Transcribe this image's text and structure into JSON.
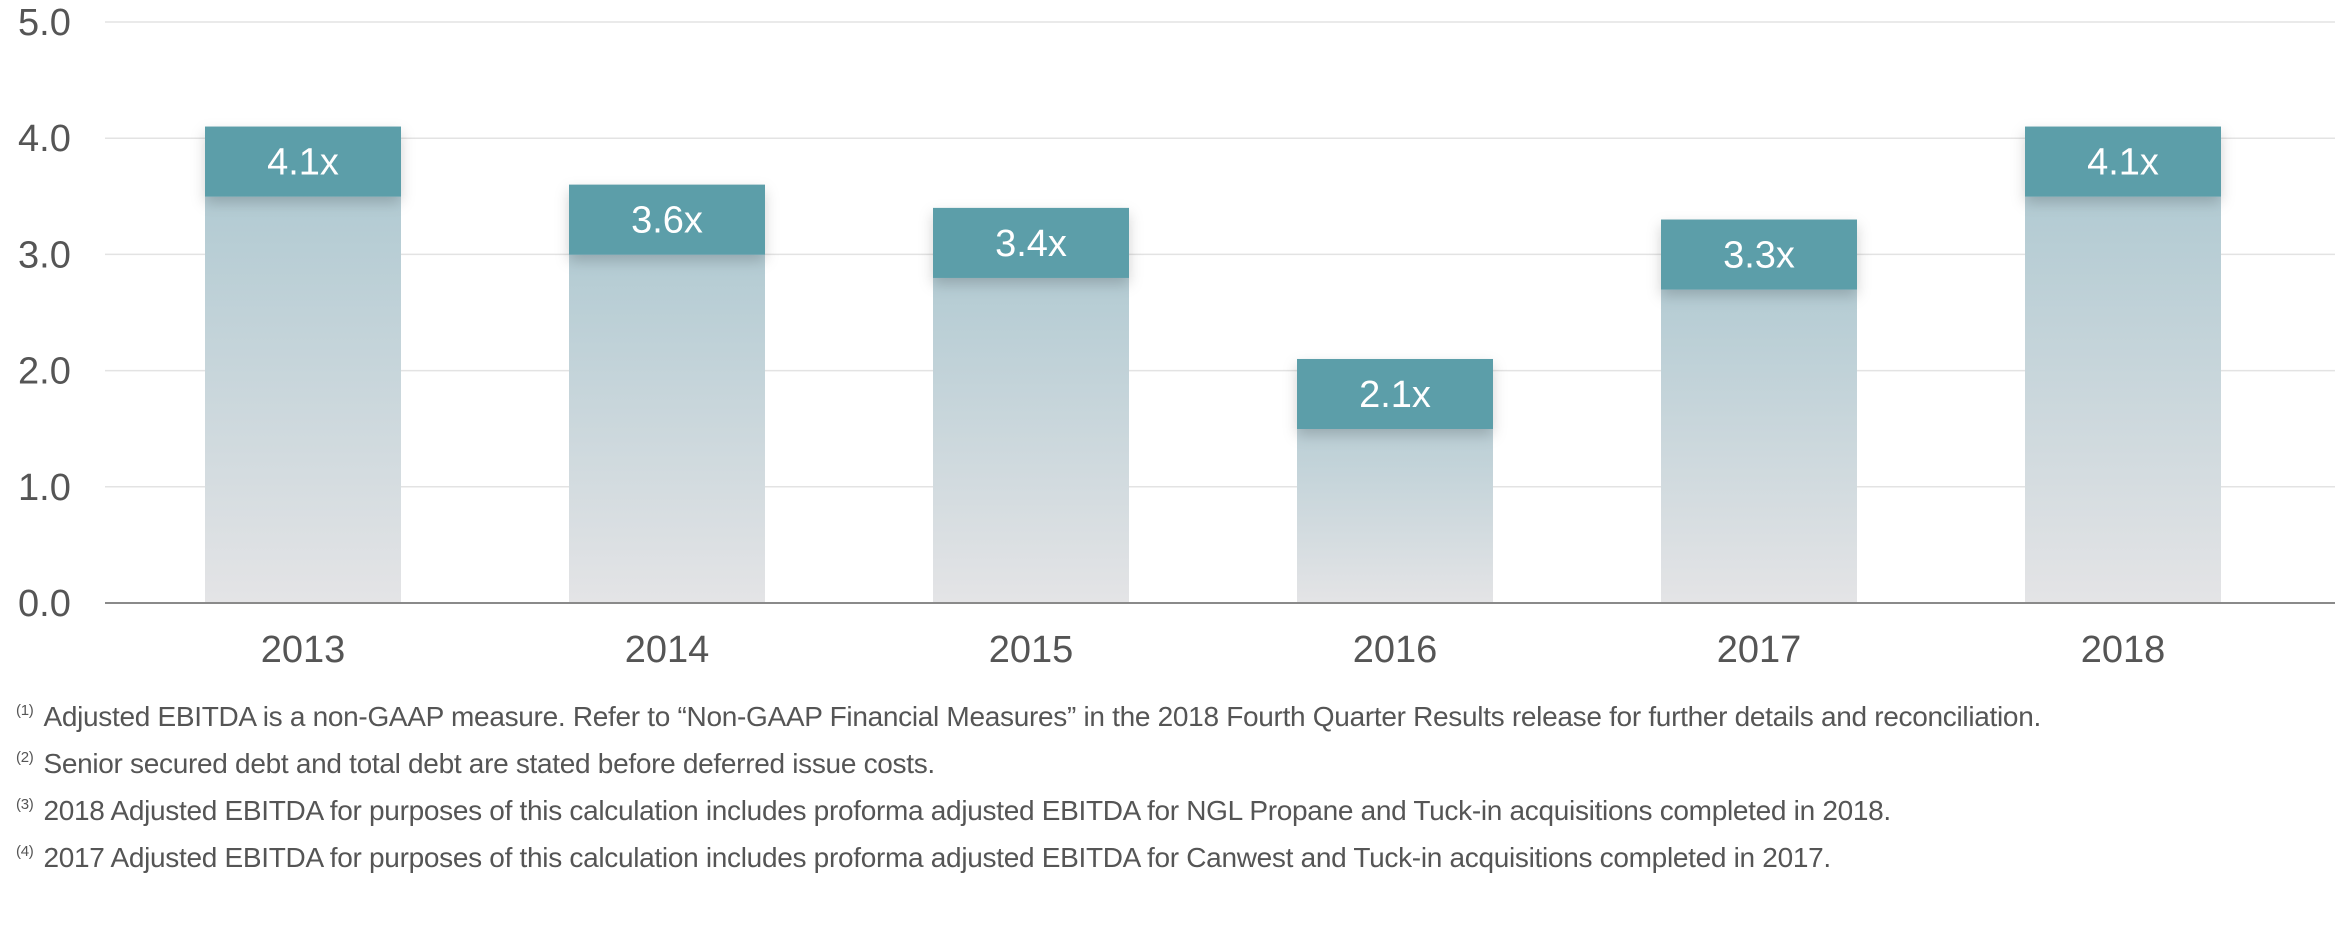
{
  "chart_data": {
    "type": "bar",
    "categories": [
      "2013",
      "2014",
      "2015",
      "2016",
      "2017",
      "2018"
    ],
    "values": [
      4.1,
      3.6,
      3.4,
      2.1,
      3.3,
      4.1
    ],
    "data_labels": [
      "4.1x",
      "3.6x",
      "3.4x",
      "2.1x",
      "3.3x",
      "4.1x"
    ],
    "y_ticks": [
      "0.0",
      "1.0",
      "2.0",
      "3.0",
      "4.0",
      "5.0"
    ],
    "ylim": [
      0,
      5
    ],
    "grid": true,
    "title": "",
    "xlabel": "",
    "ylabel": ""
  },
  "colors": {
    "label_box": "#5b9ea9",
    "bar_top": "#a9c6cf",
    "bar_bottom": "#e4e4e6",
    "grid": "#e3e3e3",
    "axis": "#8a8a8a",
    "text": "#555555"
  },
  "footnotes": [
    {
      "marker": "(1)",
      "text": "Adjusted EBITDA is a non-GAAP measure. Refer to “Non-GAAP Financial Measures” in the 2018 Fourth Quarter Results release for further details and reconciliation."
    },
    {
      "marker": "(2)",
      "text": "Senior secured debt and total debt are stated before deferred issue costs."
    },
    {
      "marker": "(3)",
      "text": "2018 Adjusted EBITDA for purposes of this calculation includes proforma adjusted EBITDA for NGL Propane and Tuck-in acquisitions completed in 2018."
    },
    {
      "marker": "(4)",
      "text": "2017 Adjusted EBITDA for purposes of this calculation includes proforma adjusted EBITDA for Canwest and Tuck-in acquisitions completed in 2017."
    }
  ]
}
